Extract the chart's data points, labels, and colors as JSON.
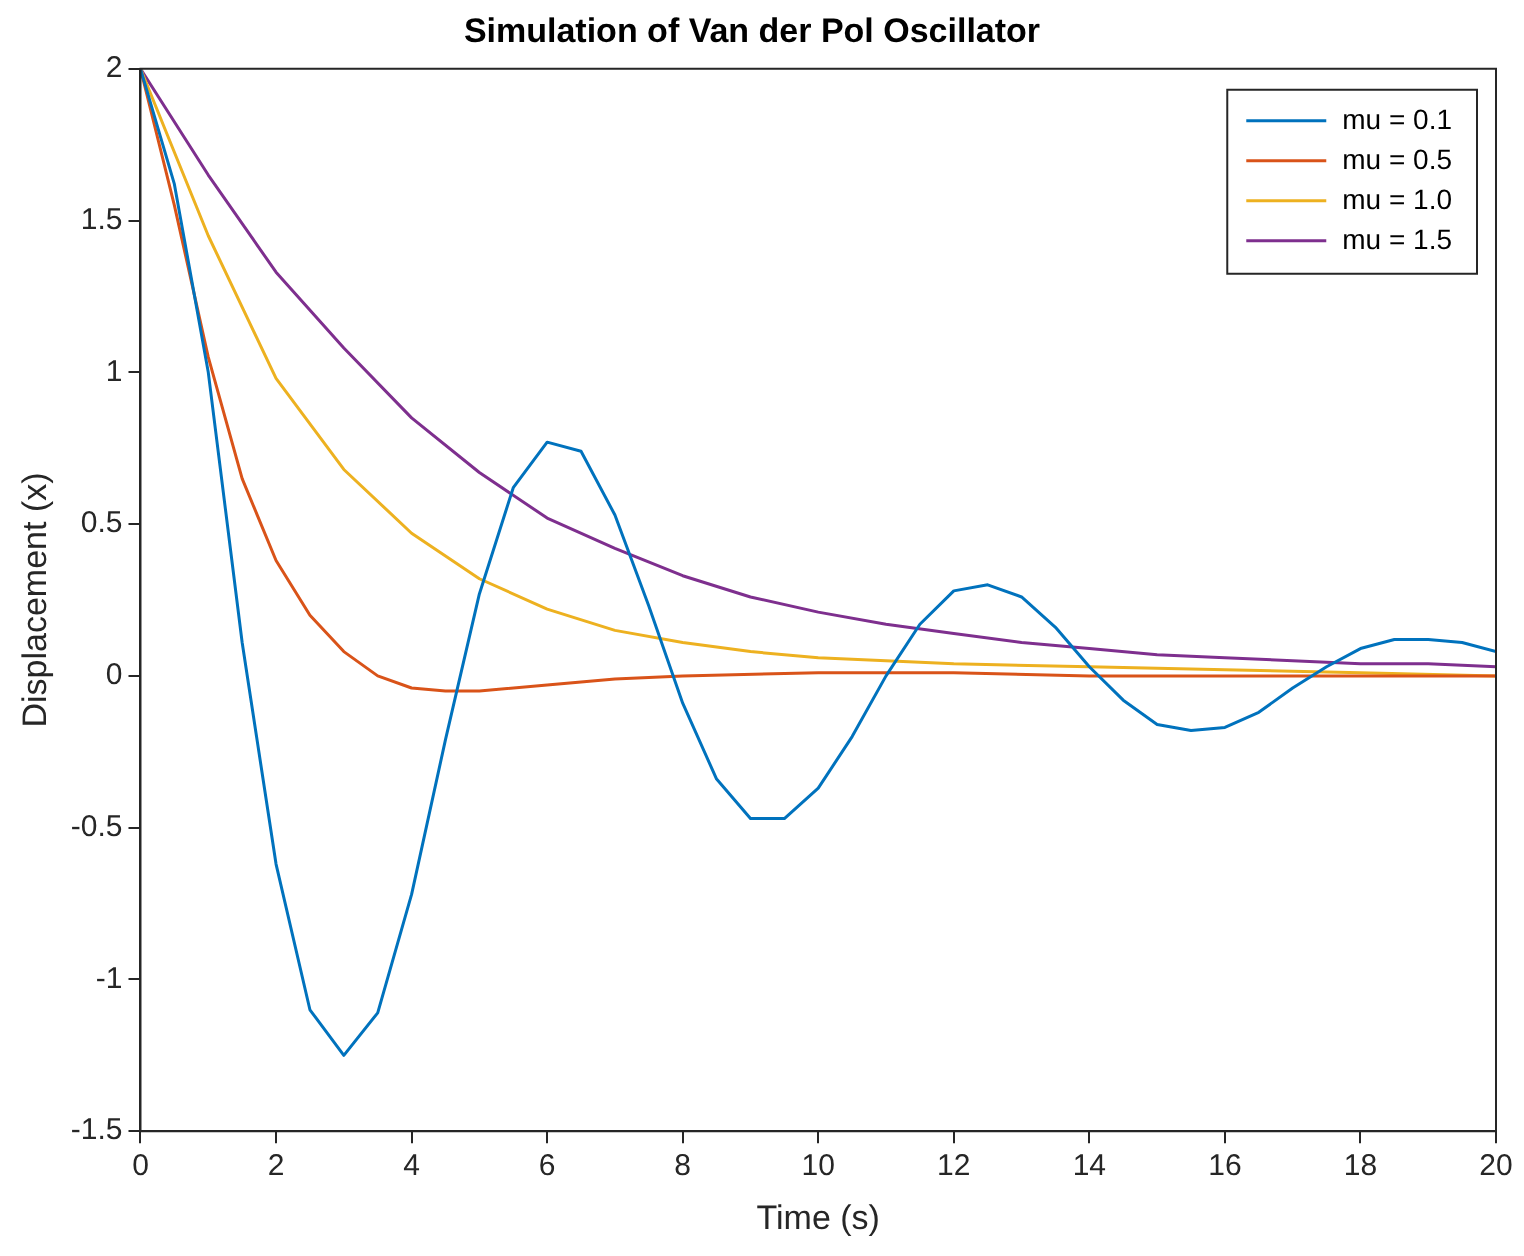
{
  "chart_data": {
    "type": "line",
    "title": "Simulation of Van der Pol Oscillator",
    "xlabel": "Time (s)",
    "ylabel": "Displacement (x)",
    "xlim": [
      0,
      20
    ],
    "xticks": [
      0,
      2,
      4,
      6,
      8,
      10,
      12,
      14,
      16,
      18,
      20
    ],
    "ylim": [
      -1.5,
      2
    ],
    "yticks": [
      -1.5,
      -1,
      -0.5,
      0,
      0.5,
      1,
      1.5,
      2
    ],
    "grid": false,
    "legend": "top right",
    "marker": "none",
    "line_style": "solid",
    "series": [
      {
        "name": "mu = 0.1",
        "color": "#0072bd",
        "x": [
          0,
          0.5,
          1,
          1.5,
          2,
          2.5,
          3,
          3.5,
          4,
          4.5,
          5,
          5.5,
          6,
          6.5,
          7,
          7.5,
          8,
          8.5,
          9,
          9.5,
          10,
          10.5,
          11,
          11.5,
          12,
          12.5,
          13,
          13.5,
          14,
          14.5,
          15,
          15.5,
          16,
          16.5,
          17,
          17.5,
          18,
          18.5,
          19,
          19.5,
          20
        ],
        "values": [
          2,
          1.62,
          1.0,
          0.11,
          -0.62,
          -1.1,
          -1.25,
          -1.11,
          -0.72,
          -0.21,
          0.27,
          0.62,
          0.77,
          0.74,
          0.53,
          0.23,
          -0.09,
          -0.34,
          -0.47,
          -0.47,
          -0.37,
          -0.2,
          0,
          0.17,
          0.28,
          0.3,
          0.26,
          0.16,
          0.03,
          -0.08,
          -0.16,
          -0.18,
          -0.17,
          -0.12,
          -0.04,
          0.03,
          0.09,
          0.12,
          0.12,
          0.11,
          0.08
        ]
      },
      {
        "name": "mu = 0.5",
        "color": "#d95319",
        "x": [
          0,
          0.5,
          1,
          1.5,
          2,
          2.5,
          3,
          3.5,
          4,
          4.5,
          5,
          6,
          7,
          8,
          10,
          12,
          14,
          16,
          18,
          20
        ],
        "values": [
          2,
          1.55,
          1.05,
          0.65,
          0.38,
          0.2,
          0.08,
          0,
          -0.04,
          -0.05,
          -0.05,
          -0.03,
          -0.01,
          0,
          0.01,
          0.01,
          0,
          0,
          0,
          0
        ]
      },
      {
        "name": "mu = 1.0",
        "color": "#edb120",
        "x": [
          0,
          1,
          2,
          3,
          4,
          5,
          6,
          7,
          8,
          9,
          10,
          12,
          14,
          16,
          18,
          20
        ],
        "values": [
          2,
          1.45,
          0.98,
          0.68,
          0.47,
          0.32,
          0.22,
          0.15,
          0.11,
          0.08,
          0.06,
          0.04,
          0.03,
          0.02,
          0.01,
          0
        ]
      },
      {
        "name": "mu = 1.5",
        "color": "#7e2f8e",
        "x": [
          0,
          1,
          2,
          3,
          4,
          5,
          6,
          7,
          8,
          9,
          10,
          11,
          12,
          13,
          14,
          15,
          16,
          17,
          18,
          19,
          20
        ],
        "values": [
          2,
          1.65,
          1.33,
          1.08,
          0.85,
          0.67,
          0.52,
          0.42,
          0.33,
          0.26,
          0.21,
          0.17,
          0.14,
          0.11,
          0.09,
          0.07,
          0.06,
          0.05,
          0.04,
          0.04,
          0.03
        ]
      }
    ]
  }
}
